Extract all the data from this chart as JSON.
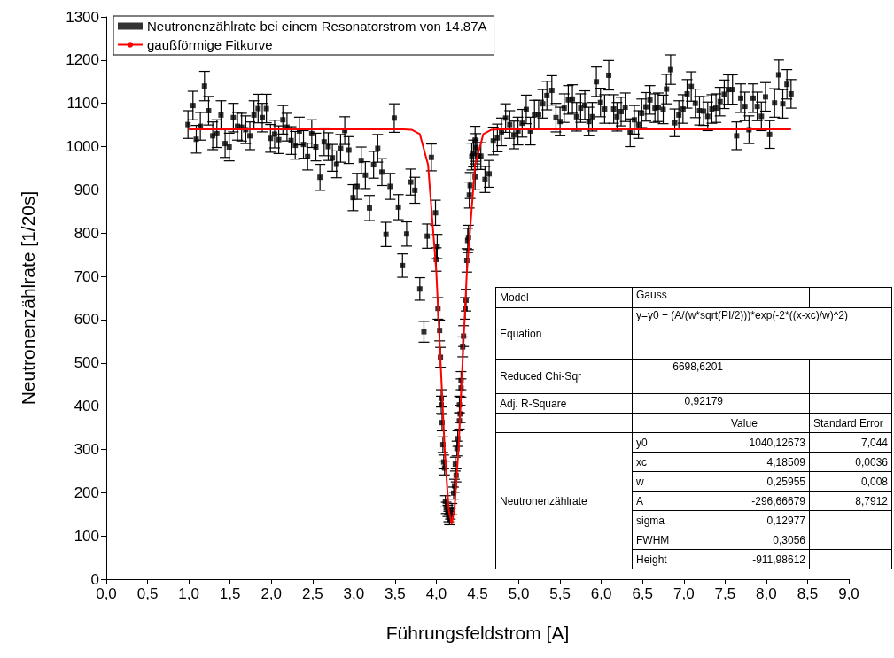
{
  "chart_data": {
    "type": "scatter",
    "xlabel": "Führungsfeldstrom [A]",
    "ylabel": "Neutronenzählrate [1/20s]",
    "xlim": [
      0,
      9
    ],
    "ylim": [
      0,
      1300
    ],
    "xticks": [
      {
        "value": 0,
        "label": "0,0"
      },
      {
        "value": 0.5,
        "label": "0,5"
      },
      {
        "value": 1,
        "label": "1,0"
      },
      {
        "value": 1.5,
        "label": "1,5"
      },
      {
        "value": 2,
        "label": "2,0"
      },
      {
        "value": 2.5,
        "label": "2,5"
      },
      {
        "value": 3,
        "label": "3,0"
      },
      {
        "value": 3.5,
        "label": "3,5"
      },
      {
        "value": 4,
        "label": "4,0"
      },
      {
        "value": 4.5,
        "label": "4,5"
      },
      {
        "value": 5,
        "label": "5,0"
      },
      {
        "value": 5.5,
        "label": "5,5"
      },
      {
        "value": 6,
        "label": "6,0"
      },
      {
        "value": 6.5,
        "label": "6,5"
      },
      {
        "value": 7,
        "label": "7,0"
      },
      {
        "value": 7.5,
        "label": "7,5"
      },
      {
        "value": 8,
        "label": "8,0"
      },
      {
        "value": 8.5,
        "label": "8,5"
      },
      {
        "value": 9,
        "label": "9,0"
      }
    ],
    "yticks": [
      0,
      100,
      200,
      300,
      400,
      500,
      600,
      700,
      800,
      900,
      1000,
      1100,
      1200,
      1300
    ],
    "grid": false,
    "legend": "top left",
    "series": [
      {
        "name": "Neutronenzählrate bei einem Resonatorstrom von 14.87A",
        "color": "#000000",
        "marker": "square",
        "x": [
          0.99,
          1.05,
          1.09,
          1.14,
          1.19,
          1.24,
          1.29,
          1.34,
          1.39,
          1.44,
          1.49,
          1.54,
          1.59,
          1.64,
          1.69,
          1.74,
          1.79,
          1.84,
          1.89,
          1.94,
          1.99,
          2.04,
          2.09,
          2.14,
          2.19,
          2.24,
          2.29,
          2.34,
          2.39,
          2.44,
          2.49,
          2.54,
          2.59,
          2.64,
          2.69,
          2.74,
          2.79,
          2.84,
          2.89,
          2.94,
          2.99,
          3.04,
          3.09,
          3.14,
          3.19,
          3.24,
          3.29,
          3.34,
          3.39,
          3.44,
          3.49,
          3.54,
          3.59,
          3.64,
          3.69,
          3.74,
          3.8,
          3.85,
          3.89,
          3.94,
          3.99,
          4.0,
          4.01,
          4.02,
          4.04,
          4.05,
          4.06,
          4.06,
          4.07,
          4.08,
          4.09,
          4.1,
          4.11,
          4.12,
          4.14,
          4.15,
          4.16,
          4.17,
          4.19,
          4.21,
          4.22,
          4.23,
          4.24,
          4.25,
          4.26,
          4.28,
          4.29,
          4.28,
          4.3,
          4.3,
          4.32,
          4.33,
          4.35,
          4.36,
          4.37,
          4.38,
          4.39,
          4.4,
          4.41,
          4.43,
          4.45,
          4.47,
          4.47,
          4.48,
          4.5,
          4.54,
          4.59,
          4.64,
          4.69,
          4.74,
          4.79,
          4.84,
          4.89,
          4.94,
          4.99,
          5.04,
          5.09,
          5.14,
          5.19,
          5.24,
          5.29,
          5.34,
          5.4,
          5.45,
          5.5,
          5.55,
          5.6,
          5.65,
          5.7,
          5.75,
          5.8,
          5.85,
          5.89,
          5.94,
          5.99,
          6.04,
          6.09,
          6.15,
          6.19,
          6.24,
          6.29,
          6.35,
          6.4,
          6.45,
          6.49,
          6.54,
          6.59,
          6.65,
          6.69,
          6.75,
          6.79,
          6.84,
          6.89,
          6.94,
          6.99,
          7.04,
          7.09,
          7.14,
          7.19,
          7.24,
          7.29,
          7.34,
          7.39,
          7.44,
          7.49,
          7.54,
          7.59,
          7.64,
          7.69,
          7.74,
          7.79,
          7.84,
          7.89,
          7.94,
          7.99,
          8.04,
          8.1,
          8.15,
          8.2,
          8.25,
          8.3
        ],
        "values": [
          1051,
          1095,
          1017,
          1047,
          1140,
          1083,
          1025,
          1030,
          1073,
          1007,
          999,
          1067,
          1047,
          1045,
          1039,
          1025,
          1073,
          1088,
          1067,
          1088,
          1019,
          1029,
          1016,
          1062,
          1045,
          1014,
          1003,
          1036,
          1005,
          977,
          1030,
          999,
          929,
          1011,
          1000,
          974,
          959,
          996,
          1037,
          992,
          882,
          908,
          968,
          934,
          858,
          958,
          996,
          941,
          797,
          908,
          1066,
          860,
          725,
          798,
          918,
          899,
          671,
          572,
          793,
          975,
          847,
          739,
          769,
          626,
          575,
          513,
          418,
          403,
          362,
          311,
          271,
          257,
          180,
          165,
          158,
          145,
          138,
          151,
          162,
          199,
          216,
          266,
          240,
          302,
          325,
          366,
          382,
          403,
          442,
          459,
          537,
          562,
          626,
          645,
          737,
          783,
          790,
          888,
          910,
          977,
          984,
          930,
          1015,
          998,
          978,
          978,
          924,
          937,
          1013,
          1020,
          1034,
          1066,
          1051,
          1027,
          1036,
          1054,
          1086,
          1036,
          1074,
          1074,
          1099,
          1118,
          1130,
          1067,
          1058,
          1089,
          1108,
          1110,
          1069,
          1089,
          1096,
          1058,
          1069,
          1150,
          1102,
          1087,
          1165,
          1087,
          1069,
          1081,
          1091,
          1032,
          1062,
          1051,
          1077,
          1092,
          1108,
          1089,
          1091,
          1086,
          1133,
          1178,
          1055,
          1073,
          1087,
          1122,
          1139,
          1100,
          1083,
          1082,
          1070,
          1087,
          1089,
          1104,
          1121,
          1132,
          1132,
          1025,
          1112,
          1093,
          1039,
          1112,
          1093,
          1070,
          1115,
          1028,
          1101,
          1166,
          1099,
          1144,
          1122
        ],
        "errors": [
          32,
          33,
          32,
          32,
          34,
          33,
          32,
          32,
          33,
          32,
          32,
          33,
          32,
          32,
          32,
          32,
          33,
          33,
          33,
          33,
          32,
          32,
          32,
          33,
          32,
          32,
          32,
          32,
          32,
          31,
          32,
          32,
          30,
          32,
          32,
          31,
          31,
          32,
          32,
          31,
          30,
          30,
          31,
          31,
          29,
          31,
          32,
          31,
          28,
          30,
          33,
          29,
          27,
          28,
          30,
          30,
          26,
          24,
          28,
          31,
          29,
          27,
          28,
          25,
          24,
          23,
          20,
          20,
          19,
          18,
          16,
          16,
          13,
          13,
          13,
          12,
          12,
          12,
          13,
          14,
          15,
          16,
          15,
          17,
          18,
          19,
          20,
          20,
          21,
          21,
          23,
          24,
          25,
          25,
          27,
          28,
          28,
          30,
          30,
          31,
          31,
          30,
          32,
          32,
          31,
          31,
          30,
          31,
          32,
          32,
          32,
          33,
          32,
          32,
          32,
          32,
          33,
          32,
          33,
          33,
          33,
          33,
          34,
          33,
          33,
          33,
          33,
          33,
          33,
          33,
          33,
          33,
          33,
          34,
          33,
          33,
          34,
          33,
          33,
          33,
          33,
          32,
          33,
          32,
          33,
          33,
          33,
          33,
          33,
          33,
          34,
          34,
          32,
          33,
          33,
          33,
          34,
          33,
          33,
          33,
          33,
          33,
          33,
          33,
          33,
          34,
          34,
          32,
          33,
          33,
          32,
          33,
          33,
          33,
          33,
          32,
          33,
          34,
          33,
          34,
          33
        ]
      },
      {
        "type": "line",
        "name": "gaußförmige Fitkurve",
        "color": "#ff0000",
        "x": [
          1.0,
          3.6,
          3.7,
          3.8,
          3.9,
          4.0,
          4.05,
          4.1,
          4.15,
          4.185,
          4.22,
          4.27,
          4.32,
          4.37,
          4.47,
          4.57,
          4.67,
          4.77,
          8.3
        ],
        "values": [
          1040,
          1040,
          1039,
          1029,
          958,
          710,
          509,
          304,
          161,
          128,
          161,
          304,
          509,
          710,
          958,
          1029,
          1039,
          1040,
          1040
        ]
      }
    ],
    "annotations": [
      "Model",
      "Gauss",
      "Equation",
      "y=y0 + (A/(w*sqrt(PI/2)))*exp(-2*((x-xc)/w)^2)",
      "Reduced Chi-Sqr",
      "6698,6201",
      "Adj. R-Square",
      "0,92179",
      "Value",
      "Standard Error",
      "Neutronenzählrate",
      "y0",
      "1040,12673",
      "7,044",
      "xc",
      "4,18509",
      "0,0036",
      "w",
      "0,25955",
      "0,008",
      "A",
      "-296,66679",
      "8,7912",
      "sigma",
      "0,12977",
      "FWHM",
      "0,3056",
      "Height",
      "-911,98612"
    ]
  }
}
